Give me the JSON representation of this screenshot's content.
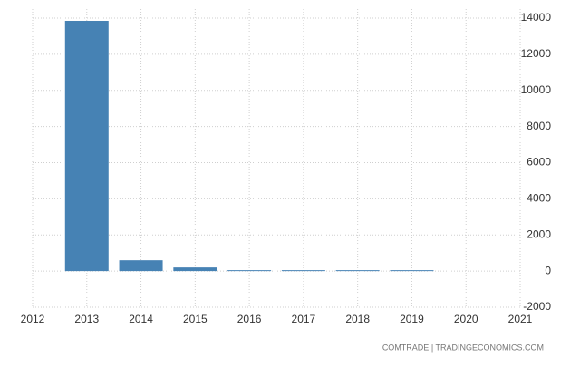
{
  "chart_data": {
    "type": "bar",
    "source": "COMTRADE | TRADINGECONOMICS.COM",
    "x": [
      2013,
      2014,
      2015,
      2016,
      2017,
      2018,
      2019
    ],
    "values": [
      13850,
      600,
      200,
      50,
      50,
      50,
      50
    ],
    "color": "#4682b4",
    "xlim": [
      2012,
      2021
    ],
    "xticks": [
      2012,
      2013,
      2014,
      2015,
      2016,
      2017,
      2018,
      2019,
      2020,
      2021
    ],
    "ylim": [
      -2000,
      14000
    ],
    "yticks": [
      -2000,
      0,
      2000,
      4000,
      6000,
      8000,
      10000,
      12000,
      14000
    ],
    "grid": true
  }
}
